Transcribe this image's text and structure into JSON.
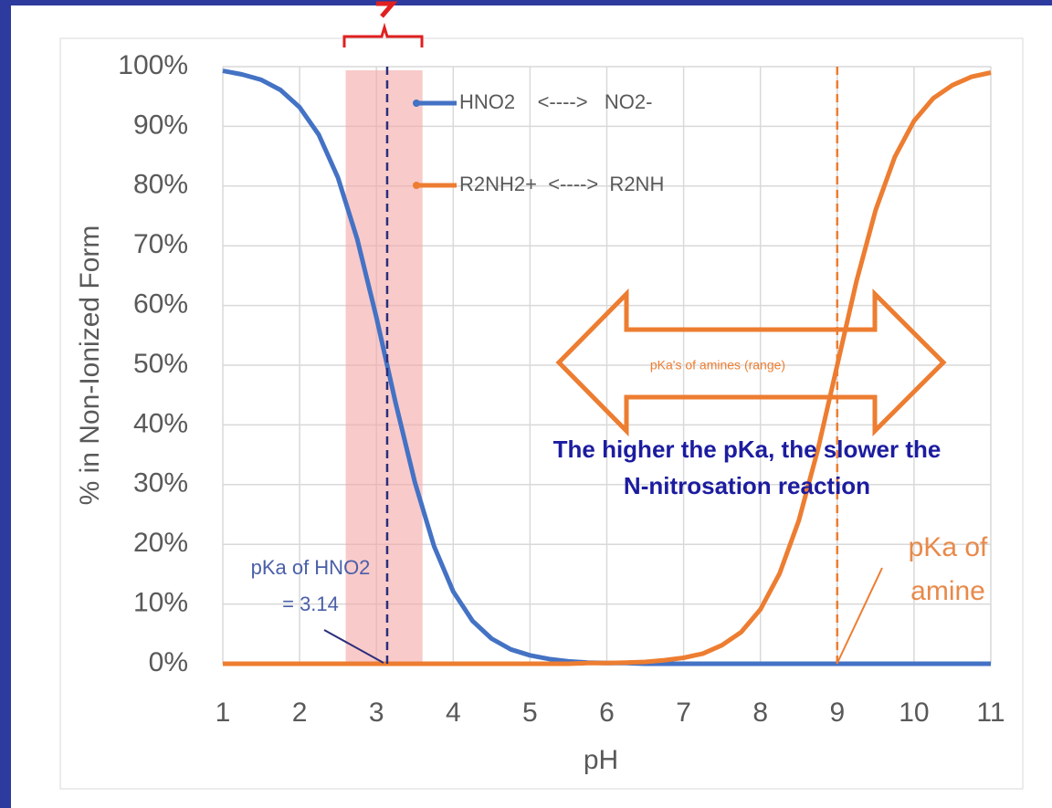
{
  "chart_data": {
    "type": "line",
    "x_label": "pH",
    "y_label": "% in Non-Ionized Form",
    "x": [
      1,
      1.25,
      1.5,
      1.75,
      2,
      2.25,
      2.5,
      2.75,
      3,
      3.25,
      3.5,
      3.75,
      4,
      4.25,
      4.5,
      4.75,
      5,
      5.25,
      5.5,
      5.75,
      6,
      6.25,
      6.5,
      6.75,
      7,
      7.25,
      7.5,
      7.75,
      8,
      8.25,
      8.5,
      8.75,
      9,
      9.25,
      9.5,
      9.75,
      10,
      10.25,
      10.5,
      10.75,
      11
    ],
    "series": [
      {
        "name": "HNO2    <---->   NO2-",
        "color": "#4472c4",
        "values": [
          99.3,
          98.7,
          97.8,
          96.1,
          93.2,
          88.6,
          81.4,
          71.1,
          58.0,
          43.7,
          30.4,
          19.7,
          12.1,
          7.2,
          4.2,
          2.4,
          1.4,
          0.8,
          0.4,
          0.2,
          0.1,
          0.1,
          0,
          0,
          0,
          0,
          0,
          0,
          0,
          0,
          0,
          0,
          0,
          0,
          0,
          0,
          0,
          0,
          0,
          0,
          0
        ]
      },
      {
        "name": "R2NH2+  <---->  R2NH",
        "color": "#ed7d31",
        "values": [
          0,
          0,
          0,
          0,
          0,
          0,
          0,
          0,
          0,
          0,
          0,
          0,
          0,
          0,
          0,
          0,
          0,
          0,
          0,
          0.1,
          0.1,
          0.2,
          0.3,
          0.6,
          1.0,
          1.7,
          3.1,
          5.3,
          9.1,
          15.1,
          24.0,
          36.0,
          50.0,
          64.0,
          76.0,
          84.9,
          90.9,
          94.7,
          96.9,
          98.3,
          99.0
        ]
      }
    ],
    "xlim": [
      1,
      11
    ],
    "ylim": [
      0,
      100
    ],
    "xticks": [
      1,
      2,
      3,
      4,
      5,
      6,
      7,
      8,
      9,
      10,
      11
    ],
    "yticks": [
      {
        "value": 0,
        "label": "0%"
      },
      {
        "value": 10,
        "label": "10%"
      },
      {
        "value": 20,
        "label": "20%"
      },
      {
        "value": 30,
        "label": "30%"
      },
      {
        "value": 40,
        "label": "40%"
      },
      {
        "value": 50,
        "label": "50%"
      },
      {
        "value": 60,
        "label": "60%"
      },
      {
        "value": 70,
        "label": "70%"
      },
      {
        "value": 80,
        "label": "80%"
      },
      {
        "value": 90,
        "label": "90%"
      },
      {
        "value": 100,
        "label": "100%"
      }
    ],
    "grid": true,
    "highlight_range": [
      2.6,
      3.6
    ],
    "reference_lines": [
      {
        "x": 3.14,
        "color": "#2b2f7a"
      },
      {
        "x": 9,
        "color": "#ed7d31"
      }
    ],
    "annotations": [
      {
        "lines": [
          "pKa of HNO2",
          "= 3.14"
        ]
      },
      {
        "lines": [
          "pKa's of amines (range)"
        ]
      },
      {
        "lines": [
          "The higher the pKa, the slower the",
          "N-nitrosation reaction"
        ]
      },
      {
        "lines": [
          "pKa of",
          "amine"
        ]
      }
    ]
  }
}
